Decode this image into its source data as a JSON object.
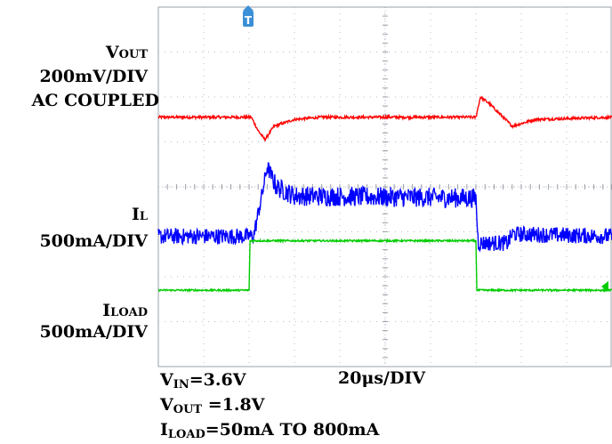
{
  "channels": {
    "vout": {
      "prefix": "V",
      "sub": "OUT",
      "scale": "200mV/DIV",
      "mode": "AC COUPLED",
      "color": "#ff0000"
    },
    "il": {
      "prefix": "I",
      "sub": "L",
      "scale": "500mA/DIV",
      "color": "#0000ff"
    },
    "iload": {
      "prefix": "I",
      "sub": "LOAD",
      "scale": "500mA/DIV",
      "color": "#00cc00"
    }
  },
  "trigger_marker": "T",
  "conditions": {
    "vin": {
      "prefix": "V",
      "sub": "IN",
      "value": "=3.6V"
    },
    "vout": {
      "prefix": "V",
      "sub": "OUT",
      "value": " =1.8V"
    },
    "iload": {
      "prefix": "I",
      "sub": "LOAD",
      "value": "=50mA TO 800mA"
    }
  },
  "timebase": "20μs/DIV",
  "chart_data": {
    "type": "line",
    "grid": true,
    "x_divisions": 10,
    "y_divisions": 8,
    "x_per_div": "20μs",
    "series": [
      {
        "name": "VOUT",
        "unit_per_div": "200mV",
        "points": [
          [
            0,
            5.55
          ],
          [
            2.05,
            5.55
          ],
          [
            2.2,
            5.25
          ],
          [
            2.35,
            5.05
          ],
          [
            2.55,
            5.35
          ],
          [
            3.0,
            5.5
          ],
          [
            3.6,
            5.55
          ],
          [
            7.0,
            5.55
          ],
          [
            7.1,
            6.0
          ],
          [
            7.3,
            5.85
          ],
          [
            7.8,
            5.35
          ],
          [
            8.3,
            5.5
          ],
          [
            10,
            5.55
          ]
        ]
      },
      {
        "name": "IL",
        "unit_per_div": "500mA",
        "points": [
          [
            0,
            2.9
          ],
          [
            2.1,
            2.9
          ],
          [
            2.3,
            3.9
          ],
          [
            2.4,
            4.45
          ],
          [
            2.6,
            4.0
          ],
          [
            3.0,
            3.8
          ],
          [
            7.0,
            3.75
          ],
          [
            7.05,
            2.75
          ],
          [
            7.7,
            2.75
          ],
          [
            7.8,
            2.95
          ],
          [
            10,
            2.9
          ]
        ]
      },
      {
        "name": "ILOAD",
        "unit_per_div": "500mA",
        "points": [
          [
            0,
            1.7
          ],
          [
            2.0,
            1.7
          ],
          [
            2.02,
            2.8
          ],
          [
            7.0,
            2.8
          ],
          [
            7.02,
            1.7
          ],
          [
            10,
            1.7
          ]
        ]
      }
    ]
  }
}
